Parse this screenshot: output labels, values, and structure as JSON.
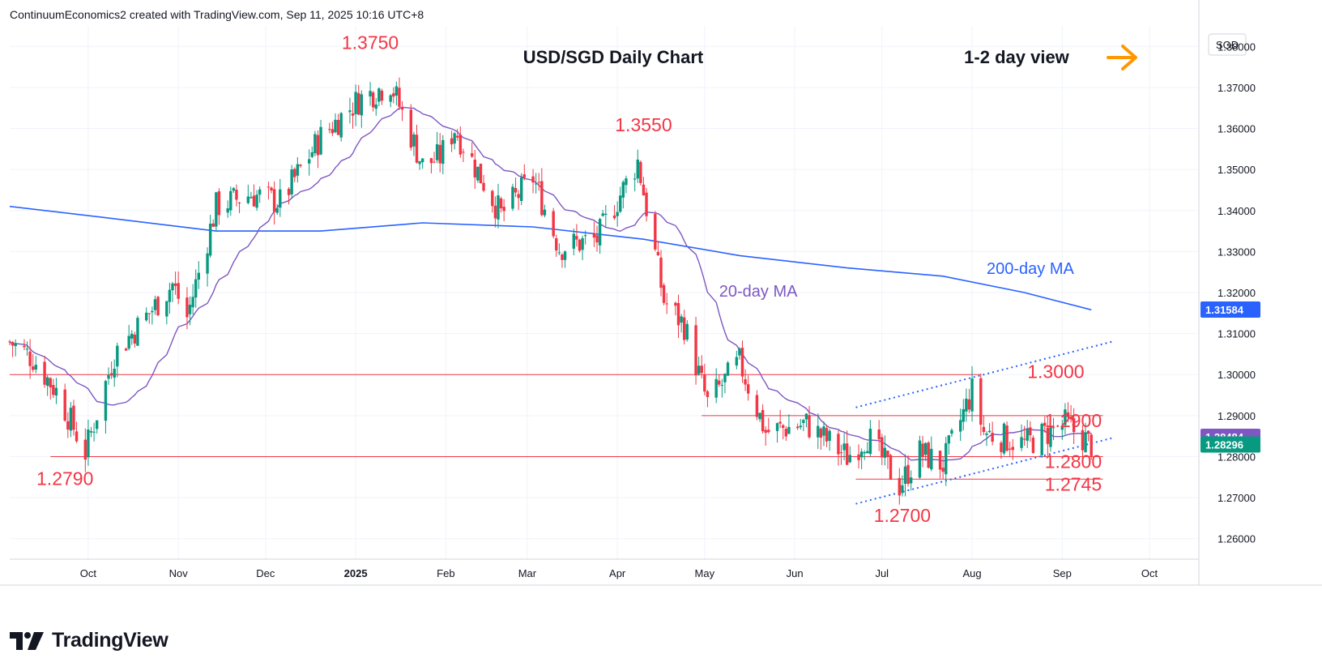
{
  "header": {
    "text": "ContinuumEconomics2 created with TradingView.com, Sep 11, 2025 10:16 UTC+8"
  },
  "brand": {
    "name": "TradingView",
    "icon": "tradingview-logo-icon"
  },
  "colors": {
    "up": "#089981",
    "down": "#f23645",
    "ma20": "#7e57c2",
    "ma200": "#2962ff",
    "level": "#f23645",
    "channel": "#2962ff",
    "grid": "#f0f3fa",
    "arrow": "#ff9800",
    "last_badge": "#089981",
    "ma20_badge": "#7e57c2",
    "ma200_badge": "#2962ff"
  },
  "chart_data": {
    "type": "candlestick",
    "title": "USD/SGD Daily Chart",
    "view_label": "1-2 day view",
    "view_icon": "arrow-right-icon",
    "currency": "SGD",
    "y_range": [
      1.255,
      1.385
    ],
    "y_ticks": [
      "1.26000",
      "1.27000",
      "1.28000",
      "1.29000",
      "1.30000",
      "1.31000",
      "1.32000",
      "1.33000",
      "1.34000",
      "1.35000",
      "1.36000",
      "1.37000",
      "1.38000"
    ],
    "x_ticks": [
      {
        "label": "Oct",
        "date": "2024-10-01",
        "bold": false
      },
      {
        "label": "Nov",
        "date": "2024-11-01",
        "bold": false
      },
      {
        "label": "Dec",
        "date": "2024-12-01",
        "bold": false
      },
      {
        "label": "2025",
        "date": "2025-01-01",
        "bold": true
      },
      {
        "label": "Feb",
        "date": "2025-02-01",
        "bold": false
      },
      {
        "label": "Mar",
        "date": "2025-03-01",
        "bold": false
      },
      {
        "label": "Apr",
        "date": "2025-04-01",
        "bold": false
      },
      {
        "label": "May",
        "date": "2025-05-01",
        "bold": false
      },
      {
        "label": "Jun",
        "date": "2025-06-01",
        "bold": false
      },
      {
        "label": "Jul",
        "date": "2025-07-01",
        "bold": false
      },
      {
        "label": "Aug",
        "date": "2025-08-01",
        "bold": false
      },
      {
        "label": "Sep",
        "date": "2025-09-01",
        "bold": false
      },
      {
        "label": "Oct",
        "date": "2025-10-01",
        "bold": false
      }
    ],
    "x_range": [
      "2024-09-04",
      "2025-10-18"
    ],
    "grid": true,
    "ohlc_anchors": [
      {
        "date": "2024-09-04",
        "close": 1.308
      },
      {
        "date": "2024-09-12",
        "close": 1.304
      },
      {
        "date": "2024-09-20",
        "close": 1.296
      },
      {
        "date": "2024-09-30",
        "close": 1.281
      },
      {
        "date": "2024-10-10",
        "close": 1.305
      },
      {
        "date": "2024-10-22",
        "close": 1.315
      },
      {
        "date": "2024-10-30",
        "close": 1.322
      },
      {
        "date": "2024-11-04",
        "close": 1.314
      },
      {
        "date": "2024-11-14",
        "close": 1.341
      },
      {
        "date": "2024-11-26",
        "close": 1.344
      },
      {
        "date": "2024-12-06",
        "close": 1.342
      },
      {
        "date": "2024-12-20",
        "close": 1.358
      },
      {
        "date": "2025-01-02",
        "close": 1.367
      },
      {
        "date": "2025-01-13",
        "close": 1.371
      },
      {
        "date": "2025-01-24",
        "close": 1.351
      },
      {
        "date": "2025-01-30",
        "close": 1.353
      },
      {
        "date": "2025-02-04",
        "close": 1.36
      },
      {
        "date": "2025-02-20",
        "close": 1.339
      },
      {
        "date": "2025-03-03",
        "close": 1.348
      },
      {
        "date": "2025-03-12",
        "close": 1.331
      },
      {
        "date": "2025-03-25",
        "close": 1.333
      },
      {
        "date": "2025-04-08",
        "close": 1.352
      },
      {
        "date": "2025-04-17",
        "close": 1.318
      },
      {
        "date": "2025-04-24",
        "close": 1.312
      },
      {
        "date": "2025-05-02",
        "close": 1.293
      },
      {
        "date": "2025-05-13",
        "close": 1.303
      },
      {
        "date": "2025-05-22",
        "close": 1.286
      },
      {
        "date": "2025-06-05",
        "close": 1.288
      },
      {
        "date": "2025-06-19",
        "close": 1.28
      },
      {
        "date": "2025-06-26",
        "close": 1.285
      },
      {
        "date": "2025-07-07",
        "close": 1.273
      },
      {
        "date": "2025-07-14",
        "close": 1.281
      },
      {
        "date": "2025-07-22",
        "close": 1.278
      },
      {
        "date": "2025-08-01",
        "close": 1.296
      },
      {
        "date": "2025-08-05",
        "close": 1.286
      },
      {
        "date": "2025-08-19",
        "close": 1.283
      },
      {
        "date": "2025-09-02",
        "close": 1.288
      },
      {
        "date": "2025-09-11",
        "close": 1.283
      }
    ],
    "ma200_anchors": [
      {
        "date": "2024-09-04",
        "value": 1.341
      },
      {
        "date": "2024-10-10",
        "value": 1.338
      },
      {
        "date": "2024-11-14",
        "value": 1.335
      },
      {
        "date": "2024-12-20",
        "value": 1.335
      },
      {
        "date": "2025-01-24",
        "value": 1.337
      },
      {
        "date": "2025-03-03",
        "value": 1.336
      },
      {
        "date": "2025-04-10",
        "value": 1.333
      },
      {
        "date": "2025-05-13",
        "value": 1.329
      },
      {
        "date": "2025-06-19",
        "value": 1.326
      },
      {
        "date": "2025-07-22",
        "value": 1.324
      },
      {
        "date": "2025-08-19",
        "value": 1.32
      },
      {
        "date": "2025-09-11",
        "value": 1.3158
      }
    ],
    "levels": [
      {
        "label": "1.3000",
        "value": 1.3,
        "start": "2024-09-04",
        "end": "2025-08-04",
        "text_date": "2025-08-20"
      },
      {
        "label": "1.2900",
        "value": 1.29,
        "start": "2025-04-30",
        "end": "2025-09-15",
        "text_date": "2025-08-26"
      },
      {
        "label": "1.2800",
        "value": 1.28,
        "start": "2024-09-18",
        "end": "2025-09-15",
        "text_date": "2025-08-26"
      },
      {
        "label": "1.2745",
        "value": 1.2745,
        "start": "2025-06-22",
        "end": "2025-09-15",
        "text_date": "2025-08-26"
      }
    ],
    "annotations": [
      {
        "label": "1.3750",
        "value": 1.375,
        "date": "2025-01-06",
        "position": "above"
      },
      {
        "label": "1.3550",
        "value": 1.355,
        "date": "2025-04-10",
        "position": "above"
      },
      {
        "label": "1.2790",
        "value": 1.279,
        "date": "2024-09-23",
        "position": "below"
      },
      {
        "label": "1.2700",
        "value": 1.27,
        "date": "2025-07-08",
        "position": "below"
      }
    ],
    "channel": [
      {
        "name": "upper",
        "from": {
          "date": "2025-06-22",
          "value": 1.292
        },
        "to": {
          "date": "2025-09-18",
          "value": 1.308
        }
      },
      {
        "name": "lower",
        "from": {
          "date": "2025-06-22",
          "value": 1.2685
        },
        "to": {
          "date": "2025-09-18",
          "value": 1.2845
        }
      }
    ],
    "series": [
      {
        "name": "20-day MA",
        "label_date": "2025-05-06",
        "label_value": 1.319
      },
      {
        "name": "200-day MA",
        "label_date": "2025-08-06",
        "label_value": 1.3245
      }
    ],
    "price_badges": [
      {
        "label": "1.31584",
        "value": 1.31584,
        "color_key": "ma200_badge"
      },
      {
        "label": "1.28484",
        "value": 1.28484,
        "color_key": "ma20_badge"
      },
      {
        "label": "1.28296",
        "value": 1.28296,
        "color_key": "last_badge"
      }
    ]
  }
}
